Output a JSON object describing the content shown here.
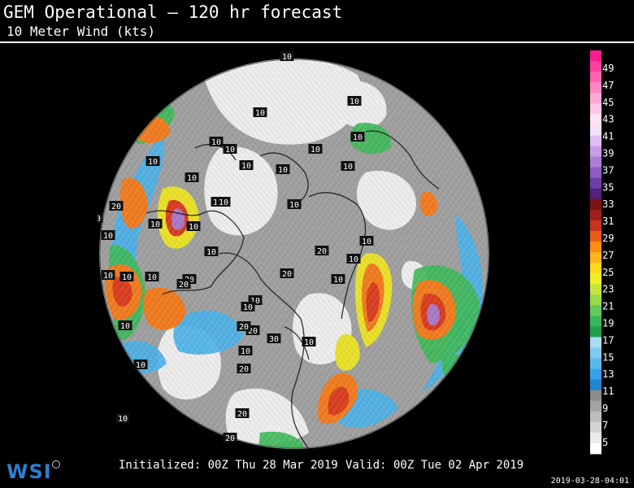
{
  "header": {
    "title": "GEM Operational — 120 hr forecast",
    "subtitle": "10 Meter Wind (kts)"
  },
  "footer": {
    "initialized": "Initialized: 00Z Thu 28 Mar 2019",
    "valid": "Valid: 00Z Tue 02 Apr 2019",
    "timestamp": "2019-03-28-04:01",
    "logo": "WSI"
  },
  "legend": {
    "colors": [
      "#ff1c8c",
      "#ff3f9d",
      "#ff62b0",
      "#ff86c5",
      "#ffa8d8",
      "#ffc6e7",
      "#ffe3f2",
      "#f4e0fb",
      "#e1bef3",
      "#c99ee6",
      "#ae7dd6",
      "#8f5bc0",
      "#6f3ea8",
      "#55207c",
      "#7a1414",
      "#a01e1e",
      "#c8321c",
      "#ea5a14",
      "#ff8c14",
      "#ffb31c",
      "#ffd71c",
      "#f2ee23",
      "#c7e63d",
      "#9ad94a",
      "#64c85a",
      "#37b85a",
      "#1ea04e",
      "#aadcf2",
      "#7ecbee",
      "#58b8ea",
      "#34a2e6",
      "#1e86d2",
      "#8c8c8c",
      "#a3a3a3",
      "#bdbdbd",
      "#d4d4d4",
      "#ebebeb",
      "#ffffff"
    ],
    "labels": [
      "49",
      "47",
      "45",
      "43",
      "41",
      "39",
      "37",
      "35",
      "33",
      "31",
      "29",
      "27",
      "25",
      "23",
      "21",
      "19",
      "17",
      "15",
      "13",
      "11",
      "9",
      "7",
      "5"
    ]
  },
  "map": {
    "contour_labels": [
      "10",
      "10",
      "10",
      "10",
      "10",
      "10",
      "10",
      "10",
      "10",
      "10",
      "10",
      "10",
      "10",
      "10",
      "10",
      "10",
      "10",
      "10",
      "10",
      "10",
      "10",
      "10",
      "10",
      "10",
      "10",
      "10",
      "10",
      "10",
      "10",
      "10",
      "10",
      "10",
      "10",
      "10",
      "10",
      "10",
      "20",
      "20",
      "20",
      "20",
      "20",
      "20",
      "20",
      "20",
      "20",
      "20",
      "20",
      "20",
      "20",
      "20",
      "20",
      "20",
      "30"
    ],
    "colors": {
      "calm": "#e8e8e8",
      "light": "#a0a0a0",
      "blue": "#45aee8",
      "green": "#3db855",
      "yellow": "#e8e028",
      "orange": "#f07a1e",
      "red": "#d83c1e",
      "purple": "#a878c8"
    }
  }
}
